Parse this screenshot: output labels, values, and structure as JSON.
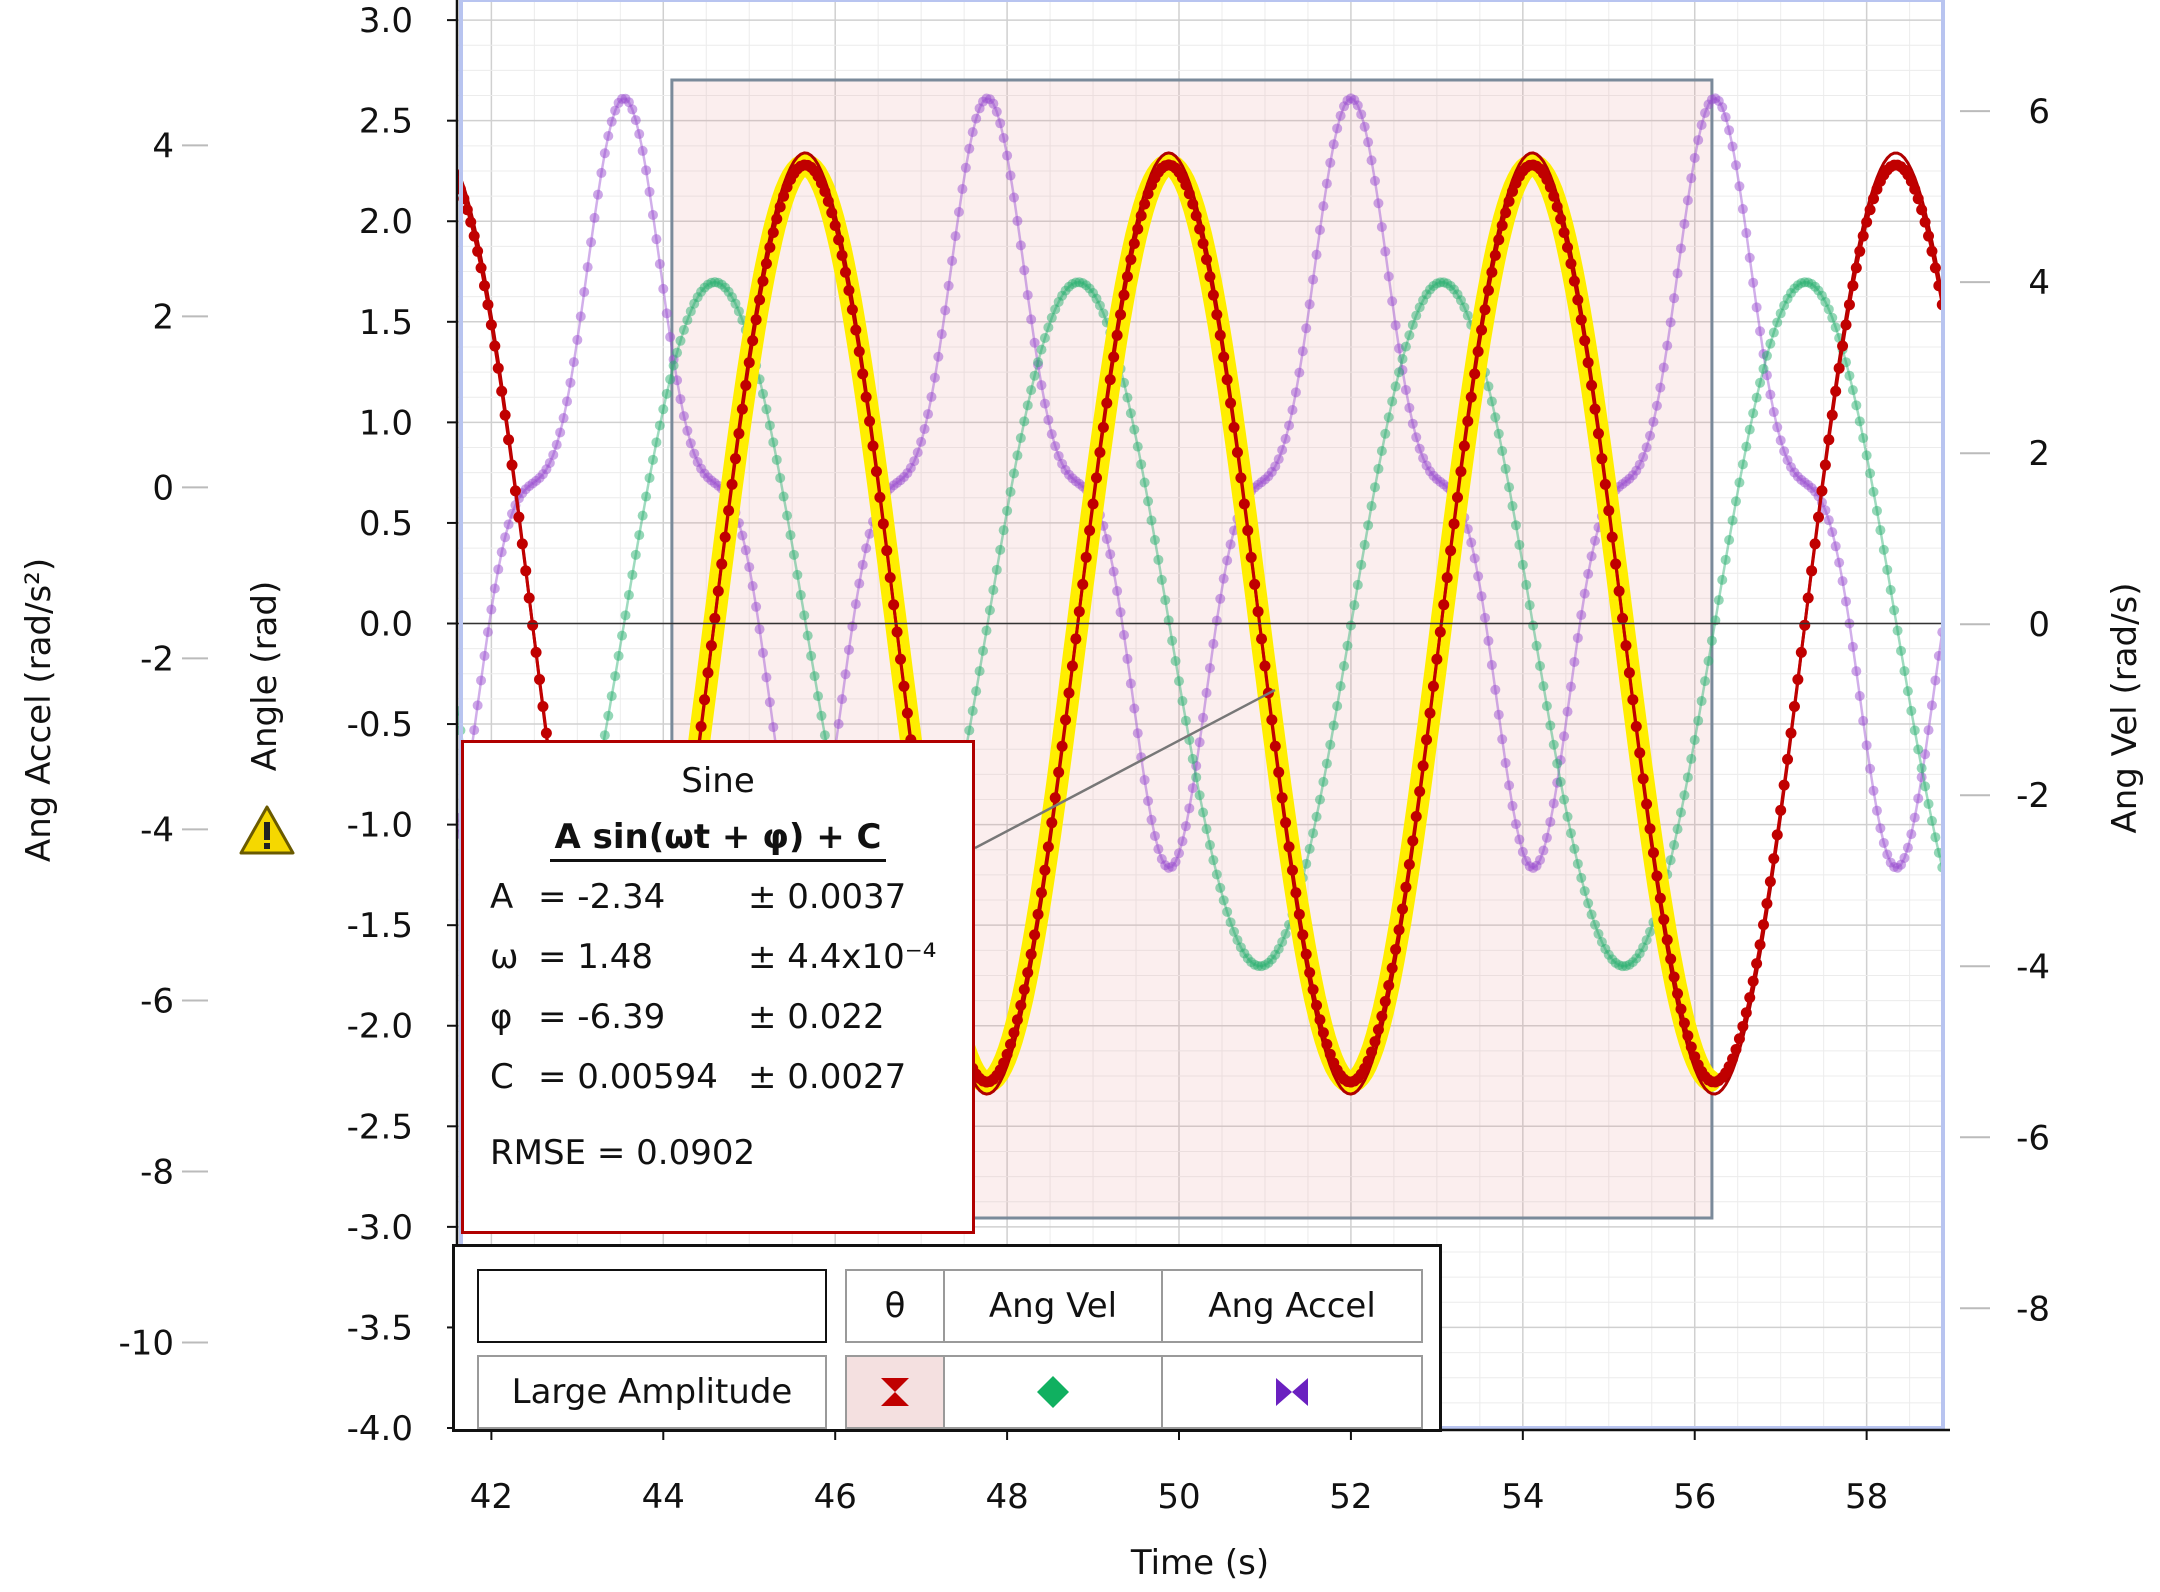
{
  "chart_data": {
    "type": "scatter",
    "xlabel": "Time (s)",
    "ylabel_left": "Angle (rad)",
    "ylabel_far_left": "Ang Accel (rad/s²)",
    "ylabel_right": "Ang Vel (rad/s)",
    "xlim": [
      41.6,
      58.9
    ],
    "ylim_angle": [
      -4.0,
      3.1
    ],
    "ylim_accel": [
      -11.0,
      5.7
    ],
    "ylim_vel": [
      -9.4,
      7.3
    ],
    "x_ticks": [
      "42",
      "44",
      "46",
      "48",
      "50",
      "52",
      "54",
      "56",
      "58"
    ],
    "angle_ticks": [
      "3.0",
      "2.5",
      "2.0",
      "1.5",
      "1.0",
      "0.5",
      "0.0",
      "-0.5",
      "-1.0",
      "-1.5",
      "-2.0",
      "-2.5",
      "-3.0",
      "-3.5",
      "-4.0"
    ],
    "accel_ticks": [
      "4",
      "2",
      "0",
      "-2",
      "-4",
      "-6",
      "-8",
      "-10"
    ],
    "vel_ticks": [
      "6",
      "4",
      "2",
      "0",
      "-2",
      "-4",
      "-6",
      "-8"
    ],
    "grid": true,
    "selection_range": [
      44.1,
      56.2
    ],
    "series": [
      {
        "name": "θ",
        "axis": "angle",
        "color": "#c00000",
        "marker": "circle",
        "amplitude": 2.28,
        "period": 4.23,
        "peak_times": [
          45.65,
          49.88,
          54.11,
          58.34
        ]
      },
      {
        "name": "Ang Vel",
        "axis": "velocity",
        "color": "#2ab070",
        "marker": "circle",
        "amplitude": 4.0,
        "period": 4.23,
        "peak_times": [
          44.6,
          48.83,
          53.06,
          57.29
        ]
      },
      {
        "name": "Ang Accel",
        "axis": "acceleration",
        "color": "#9a4ed0",
        "marker": "circle",
        "period": 4.23,
        "max_value": 4.65,
        "min_value": -4.5
      }
    ],
    "fit": {
      "name": "Sine",
      "equation": "A sin(ωt + φ) + C",
      "params": [
        {
          "name": "A",
          "value": "= -2.34",
          "uncertainty": "± 0.0037"
        },
        {
          "name": "ω",
          "value": "= 1.48",
          "uncertainty": "± 4.4x10⁻⁴"
        },
        {
          "name": "φ",
          "value": "= -6.39",
          "uncertainty": "± 0.022"
        },
        {
          "name": "C",
          "value": "= 0.00594",
          "uncertainty": "± 0.0027"
        }
      ],
      "rmse": "RMSE = 0.0902",
      "line_color": "#b00000",
      "highlight_color": "#ffee00"
    }
  },
  "legend": {
    "headers": [
      "θ",
      "Ang Vel",
      "Ang Accel"
    ],
    "run_name": "Large Amplitude",
    "marker_colors": [
      "#c00000",
      "#10b060",
      "#6a20c0"
    ],
    "marker_icons": [
      "hourglass-marker-icon",
      "diamond-marker-icon",
      "bowtie-marker-icon"
    ]
  },
  "icons": {
    "warning": "warning-triangle-icon"
  }
}
